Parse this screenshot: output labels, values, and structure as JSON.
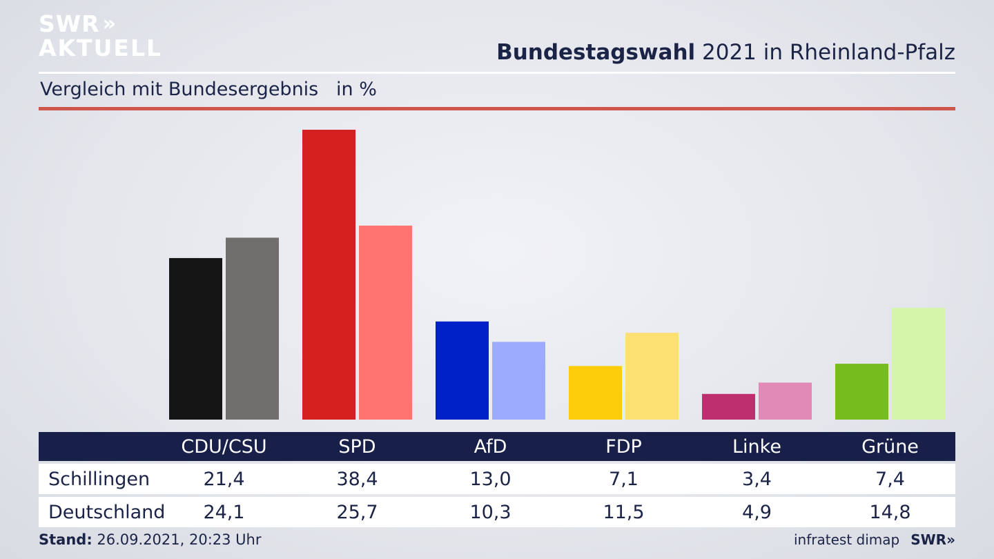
{
  "header": {
    "logo_top": "SWR",
    "logo_chevrons": "»",
    "logo_bottom": "AKTUELL",
    "headline_bold": "Bundestagswahl",
    "headline_rest": " 2021 in Rheinland-Pfalz",
    "subtitle": "Vergleich mit Bundesergebnis   in %"
  },
  "chart_data": {
    "type": "bar",
    "title": "Bundestagswahl 2021 in Rheinland-Pfalz",
    "subtitle": "Vergleich mit Bundesergebnis   in %",
    "categories": [
      "CDU/CSU",
      "SPD",
      "AfD",
      "FDP",
      "Linke",
      "Grüne"
    ],
    "series": [
      {
        "name": "Schillingen",
        "values": [
          21.4,
          38.4,
          13.0,
          7.1,
          3.4,
          7.4
        ]
      },
      {
        "name": "Deutschland",
        "values": [
          24.1,
          25.7,
          10.3,
          11.5,
          4.9,
          14.8
        ]
      }
    ],
    "display_values": {
      "Schillingen": [
        "21,4",
        "38,4",
        "13,0",
        "7,1",
        "3,4",
        "7,4"
      ],
      "Deutschland": [
        "24,1",
        "25,7",
        "10,3",
        "11,5",
        "4,9",
        "14,8"
      ]
    },
    "colors": {
      "Schillingen": [
        "#141414",
        "#d6201f",
        "#0021c8",
        "#fdcc0a",
        "#bd2f6e",
        "#77bc1f"
      ],
      "Deutschland": [
        "#706f6d",
        "#ff7370",
        "#9dabff",
        "#fde072",
        "#e18ab7",
        "#d5f5a8"
      ]
    },
    "grid": false,
    "legend": "table-below"
  },
  "footer": {
    "stand_label": "Stand:",
    "stand_value": " 26.09.2021, 20:23 Uhr",
    "source": "infratest dimap",
    "brand": "SWR»"
  }
}
